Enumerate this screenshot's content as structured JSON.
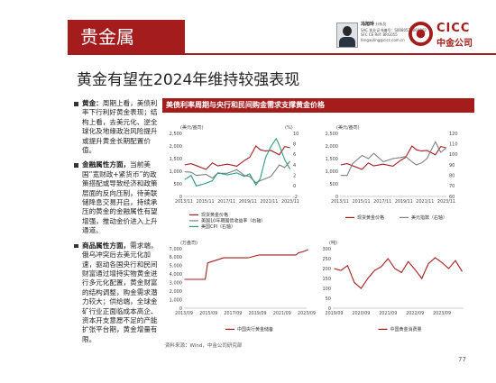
{
  "header": {
    "section": "贵金属",
    "analyst": {
      "name": "冯旭玲",
      "title": "分析员",
      "lines": [
        "SAC 执业证书编号：S0080523060002",
        "SFC CE Ref: BRG055",
        "fengxuling@cicc.com.cn"
      ]
    },
    "logo": {
      "en": "CICC",
      "cn": "中金公司"
    }
  },
  "page_title": "黄金有望在2024年维持较强表现",
  "bullets": [
    {
      "head": "黄金：",
      "text": "周期上看，美债利率下行利好黄金表现；结构上看，去美元化、逆全球化及地缘政治风险提升或提升黄金长期配置价值。"
    },
    {
      "head": "金融属性方面，",
      "text": "当前美国“宽财政+紧货币”的政策搭配或导致经济和政策层面的反向压制，待美联储降息交易开启，持续承压的黄金的金融属性有望增强，推动金价进入上升通道。"
    },
    {
      "head": "商品属性方面，",
      "text": "需求端，俄乌冲突后去美元化加速，驱动各国央行和民间财富通过增持实物黄金进行多元化配置，黄金财富的结构调整，购金需求潜力较大；供给端，全球金矿行业正面临成本高企、资本开支意愿不足的产能扩张平台期，黄金增量有限。"
    }
  ],
  "chart_banner": "美债利率周期与央行和民间购金需求支撑黄金价格",
  "source": "资料来源：Wind，中金公司研究部",
  "page_number": "77",
  "colors": {
    "brand_red": "#a51c1c",
    "gold_line": "#a51c1c",
    "tips_line": "#7f7f7f",
    "cpi_line": "#2e9a86"
  },
  "chart_data": [
    {
      "type": "line",
      "units_left": "(美元/盎司)",
      "units_right": "(%)",
      "x_ticks": [
        "2013/11",
        "2015/11",
        "2017/11",
        "2019/11",
        "2021/11",
        "2023/11"
      ],
      "y_left_ticks": [
        "0",
        "500",
        "1,000",
        "1,500",
        "2,000",
        "2,500"
      ],
      "y_right_ticks": [
        "-2",
        "0",
        "2",
        "4",
        "6",
        "8",
        "10"
      ],
      "ylim_left": [
        0,
        2500
      ],
      "ylim_right": [
        -2,
        10
      ],
      "series": [
        {
          "name": "现货黄金价格",
          "axis": "left",
          "color": "#a51c1c",
          "x": [
            2013.9,
            2014.5,
            2015.0,
            2015.9,
            2016.5,
            2017.0,
            2017.9,
            2018.8,
            2019.5,
            2020.0,
            2020.6,
            2021.0,
            2021.5,
            2022.0,
            2022.8,
            2023.3,
            2023.8
          ],
          "values": [
            1250,
            1300,
            1220,
            1070,
            1330,
            1210,
            1280,
            1200,
            1420,
            1550,
            2000,
            1850,
            1800,
            1820,
            1650,
            1980,
            1930
          ]
        },
        {
          "name": "美国10年期国债收益率（右轴）",
          "axis": "right",
          "color": "#7f7f7f",
          "x": [
            2013.9,
            2014.5,
            2015.0,
            2015.9,
            2016.5,
            2017.0,
            2017.9,
            2018.8,
            2019.5,
            2020.0,
            2020.6,
            2021.0,
            2021.5,
            2022.0,
            2022.8,
            2023.3,
            2023.8
          ],
          "values": [
            2.7,
            2.6,
            2.0,
            2.2,
            1.5,
            2.4,
            2.4,
            3.1,
            2.0,
            1.8,
            0.6,
            1.0,
            1.4,
            1.8,
            4.0,
            3.5,
            4.7
          ]
        },
        {
          "name": "美国CPI（右轴）",
          "axis": "right",
          "color": "#2e9a86",
          "x": [
            2013.9,
            2014.5,
            2015.0,
            2015.9,
            2016.5,
            2017.0,
            2017.9,
            2018.8,
            2019.5,
            2020.0,
            2020.6,
            2021.0,
            2021.5,
            2022.0,
            2022.5,
            2022.8,
            2023.3,
            2023.8
          ],
          "values": [
            1.2,
            2.0,
            0.0,
            0.5,
            1.0,
            2.5,
            2.1,
            2.5,
            1.8,
            2.3,
            0.2,
            1.4,
            5.4,
            7.5,
            9.0,
            7.7,
            5.0,
            3.2
          ]
        }
      ]
    },
    {
      "type": "line",
      "units_left": "(美元/盎司)",
      "x_ticks": [
        "2013/11",
        "2015/11",
        "2017/11",
        "2019/11",
        "2021/11",
        "2023/11"
      ],
      "y_left_ticks": [
        "0",
        "500",
        "1,000",
        "1,500",
        "2,000",
        "2,500"
      ],
      "y_right_ticks": [
        "60",
        "70",
        "80",
        "90",
        "100",
        "110",
        "120"
      ],
      "ylim_left": [
        0,
        2500
      ],
      "ylim_right": [
        60,
        120
      ],
      "series": [
        {
          "name": "现货黄金价格",
          "axis": "left",
          "color": "#a51c1c",
          "x": [
            2013.9,
            2014.5,
            2015.0,
            2015.9,
            2016.5,
            2017.0,
            2017.9,
            2018.8,
            2019.5,
            2020.0,
            2020.6,
            2021.0,
            2021.5,
            2022.0,
            2022.8,
            2023.3,
            2023.8
          ],
          "values": [
            1250,
            1300,
            1220,
            1070,
            1330,
            1210,
            1280,
            1200,
            1420,
            1550,
            2000,
            1850,
            1800,
            1820,
            1650,
            1980,
            1930
          ]
        },
        {
          "name": "美元指数（右轴）",
          "axis": "right",
          "color": "#7f7f7f",
          "x": [
            2013.9,
            2014.5,
            2015.0,
            2015.9,
            2016.5,
            2017.0,
            2017.9,
            2018.8,
            2019.5,
            2020.0,
            2020.6,
            2021.0,
            2021.5,
            2022.0,
            2022.8,
            2023.3,
            2023.8
          ],
          "values": [
            80,
            80,
            91,
            99,
            96,
            101,
            93,
            96,
            97,
            98,
            93,
            90,
            92,
            96,
            112,
            102,
            106
          ]
        }
      ]
    },
    {
      "type": "line",
      "units_left": "(万盎司)",
      "x_ticks": [
        "2013/09",
        "2015/09",
        "2017/09",
        "2019/09",
        "2021/09",
        "2023/09"
      ],
      "y_left_ticks": [
        "0",
        "1,000",
        "2,000",
        "3,000",
        "4,000",
        "5,000",
        "6,000",
        "7,000"
      ],
      "ylim_left": [
        0,
        7000
      ],
      "series": [
        {
          "name": "中国央行黄金储备",
          "axis": "left",
          "color": "#a51c1c",
          "x": [
            2013.7,
            2015.4,
            2015.6,
            2016.9,
            2018.9,
            2019.8,
            2022.8,
            2023.0,
            2023.4,
            2023.8
          ],
          "values": [
            3389,
            3389,
            5332,
            5924,
            5924,
            6264,
            6264,
            6512,
            6676,
            6893
          ]
        }
      ]
    },
    {
      "type": "line",
      "units_left": "(吨)",
      "x_ticks": [
        "2019/09",
        "2020/09",
        "2021/09",
        "2022/09",
        "2023/09"
      ],
      "y_left_ticks": [
        "0",
        "50",
        "100",
        "150",
        "200",
        "250",
        "300"
      ],
      "ylim_left": [
        0,
        300
      ],
      "series": [
        {
          "name": "中国黄金消费量",
          "axis": "left",
          "color": "#a51c1c",
          "x": [
            2019.0,
            2019.25,
            2019.5,
            2019.75,
            2020.0,
            2020.25,
            2020.5,
            2020.75,
            2021.0,
            2021.25,
            2021.5,
            2021.75,
            2022.0,
            2022.25,
            2022.5,
            2022.75,
            2023.0,
            2023.25,
            2023.5,
            2023.75
          ],
          "values": [
            200,
            190,
            215,
            130,
            100,
            150,
            190,
            210,
            250,
            200,
            180,
            235,
            195,
            150,
            225,
            255,
            230,
            200,
            240,
            185
          ]
        }
      ]
    }
  ]
}
